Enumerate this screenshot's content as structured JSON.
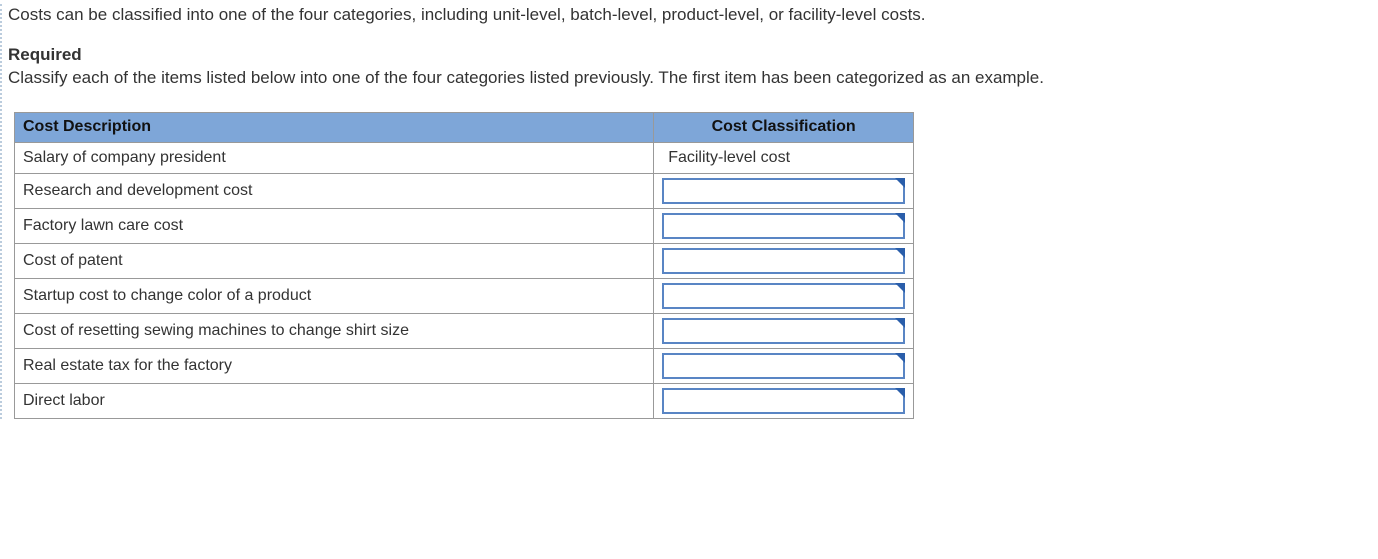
{
  "intro": "Costs can be classified into one of the four categories, including unit-level, batch-level, product-level, or facility-level costs.",
  "required_label": "Required",
  "required_text": "Classify each of the items listed below into one of the four categories listed previously. The first item has been categorized as an example.",
  "table": {
    "headers": {
      "description": "Cost Description",
      "classification": "Cost Classification"
    },
    "header_bg": "#7ea6d8",
    "dropdown_border": "#5985c4",
    "dropdown_caret": "#2a5eaa",
    "rows": [
      {
        "description": "Salary of company president",
        "classification": "Facility-level cost",
        "editable": false
      },
      {
        "description": "Research and development cost",
        "classification": "",
        "editable": true
      },
      {
        "description": "Factory lawn care cost",
        "classification": "",
        "editable": true
      },
      {
        "description": "Cost of patent",
        "classification": "",
        "editable": true
      },
      {
        "description": "Startup cost to change color of a product",
        "classification": "",
        "editable": true
      },
      {
        "description": "Cost of resetting sewing machines to change shirt size",
        "classification": "",
        "editable": true
      },
      {
        "description": "Real estate tax for the factory",
        "classification": "",
        "editable": true
      },
      {
        "description": "Direct labor",
        "classification": "",
        "editable": true
      }
    ]
  }
}
